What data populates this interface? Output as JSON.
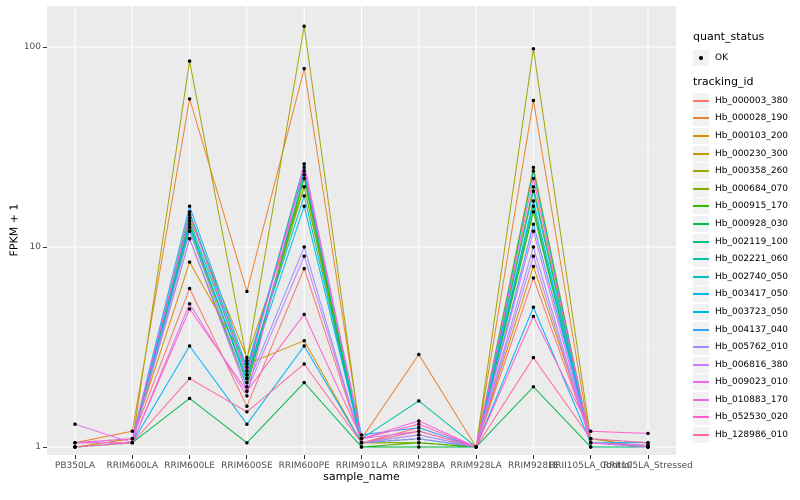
{
  "figure": {
    "background": "#FFFFFF",
    "panel_background": "#EBEBEB",
    "grid_color": "#FFFFFF",
    "axis_text_color": "#4D4D4D",
    "point_color": "#000000"
  },
  "chart_data": {
    "type": "line",
    "scale_y": "log10",
    "xlabel": "sample_name",
    "ylabel": "FPKM + 1",
    "y_tick_values": [
      1,
      10,
      100
    ],
    "y_tick_labels": [
      "1",
      "10",
      "100"
    ],
    "ylim": [
      0.9,
      160
    ],
    "grid": true,
    "legend_position": "right",
    "point_shape": "filled-circle",
    "categories": [
      "PB350LA",
      "RRIM600LA",
      "RRIM600LE",
      "RRIM600SE",
      "RRIM600PE",
      "RRIM901LA",
      "RRIM928BA",
      "RRIM928LA",
      "RRIM928LE",
      "RRII105LA_Control",
      "RRII105LA_Stressed"
    ],
    "legend": {
      "quant_status_title": "quant_status",
      "quant_status_items": [
        "OK"
      ],
      "tracking_id_title": "tracking_id"
    },
    "series": [
      {
        "name": "Hb_000003_380",
        "color": "#F8766D",
        "values": [
          1.05,
          1.1,
          6.2,
          1.6,
          7.8,
          1.05,
          1.25,
          1.0,
          7.0,
          1.1,
          1.05
        ]
      },
      {
        "name": "Hb_000028_190",
        "color": "#EA8331",
        "values": [
          1.05,
          1.2,
          55,
          6.0,
          78,
          1.1,
          2.9,
          1.0,
          54,
          1.05,
          1.0
        ]
      },
      {
        "name": "Hb_000103_200",
        "color": "#D89000",
        "values": [
          1.0,
          1.1,
          8.4,
          2.6,
          3.4,
          1.05,
          1.05,
          1.0,
          8.0,
          1.1,
          1.0
        ]
      },
      {
        "name": "Hb_000230_300",
        "color": "#C09B00",
        "values": [
          1.0,
          1.05,
          14,
          2.8,
          20,
          1.05,
          1.1,
          1.0,
          25,
          1.05,
          1.0
        ]
      },
      {
        "name": "Hb_000358_260",
        "color": "#A3A500",
        "values": [
          1.0,
          1.05,
          85,
          2.7,
          127,
          1.05,
          1.1,
          1.0,
          98,
          1.1,
          1.0
        ]
      },
      {
        "name": "Hb_000684_070",
        "color": "#7CAE00",
        "values": [
          1.0,
          1.05,
          12,
          2.2,
          20,
          1.05,
          1.05,
          1.0,
          20,
          1.05,
          1.0
        ]
      },
      {
        "name": "Hb_000915_170",
        "color": "#39B600",
        "values": [
          1.0,
          1.05,
          11,
          2.0,
          22,
          1.0,
          1.05,
          1.0,
          15,
          1.05,
          1.0
        ]
      },
      {
        "name": "Hb_000928_030",
        "color": "#00BB4E",
        "values": [
          1.0,
          1.05,
          1.75,
          1.05,
          2.1,
          1.0,
          1.0,
          1.0,
          2.0,
          1.0,
          1.0
        ]
      },
      {
        "name": "Hb_002119_100",
        "color": "#00BF7D",
        "values": [
          1.0,
          1.05,
          13,
          2.1,
          23,
          1.05,
          1.1,
          1.0,
          16,
          1.0,
          1.0
        ]
      },
      {
        "name": "Hb_002221_060",
        "color": "#00C1A3",
        "values": [
          1.0,
          1.05,
          15,
          2.4,
          26,
          1.1,
          1.7,
          1.0,
          24,
          1.05,
          1.0
        ]
      },
      {
        "name": "Hb_002740_050",
        "color": "#00BFC4",
        "values": [
          1.0,
          1.05,
          13.5,
          2.3,
          18,
          1.05,
          1.15,
          1.0,
          19,
          1.05,
          1.0
        ]
      },
      {
        "name": "Hb_003417_050",
        "color": "#00BAE0",
        "values": [
          1.0,
          1.05,
          12.5,
          2.2,
          16,
          1.05,
          1.1,
          1.0,
          17,
          1.05,
          1.02
        ]
      },
      {
        "name": "Hb_003723_050",
        "color": "#00B0F6",
        "values": [
          1.0,
          1.05,
          3.2,
          1.3,
          3.2,
          1.05,
          1.2,
          1.0,
          5.0,
          1.05,
          1.05
        ]
      },
      {
        "name": "Hb_004137_040",
        "color": "#35A2FF",
        "values": [
          1.05,
          1.1,
          16,
          2.5,
          24,
          1.15,
          1.25,
          1.0,
          13,
          1.1,
          1.05
        ]
      },
      {
        "name": "Hb_005762_010",
        "color": "#9590FF",
        "values": [
          1.0,
          1.05,
          12,
          2.0,
          10,
          1.05,
          1.1,
          1.0,
          10,
          1.05,
          1.0
        ]
      },
      {
        "name": "Hb_006816_380",
        "color": "#C77CFF",
        "values": [
          1.05,
          1.05,
          11,
          1.9,
          9.0,
          1.05,
          1.15,
          1.0,
          9.0,
          1.05,
          1.0
        ]
      },
      {
        "name": "Hb_009023_010",
        "color": "#E76BF3",
        "values": [
          1.3,
          1.05,
          5.2,
          1.8,
          26,
          1.1,
          1.2,
          1.0,
          12,
          1.05,
          1.0
        ]
      },
      {
        "name": "Hb_010883_170",
        "color": "#FA62DB",
        "values": [
          1.05,
          1.1,
          14.5,
          2.3,
          25,
          1.1,
          1.35,
          1.0,
          22,
          1.05,
          1.02
        ]
      },
      {
        "name": "Hb_052530_020",
        "color": "#FF61CC",
        "values": [
          1.05,
          1.05,
          4.9,
          1.9,
          4.6,
          1.1,
          1.3,
          1.0,
          4.5,
          1.2,
          1.17
        ]
      },
      {
        "name": "Hb_128986_010",
        "color": "#FF6A98",
        "values": [
          1.0,
          1.05,
          2.2,
          1.5,
          2.6,
          1.05,
          1.2,
          1.0,
          2.8,
          1.1,
          1.05
        ]
      }
    ]
  }
}
